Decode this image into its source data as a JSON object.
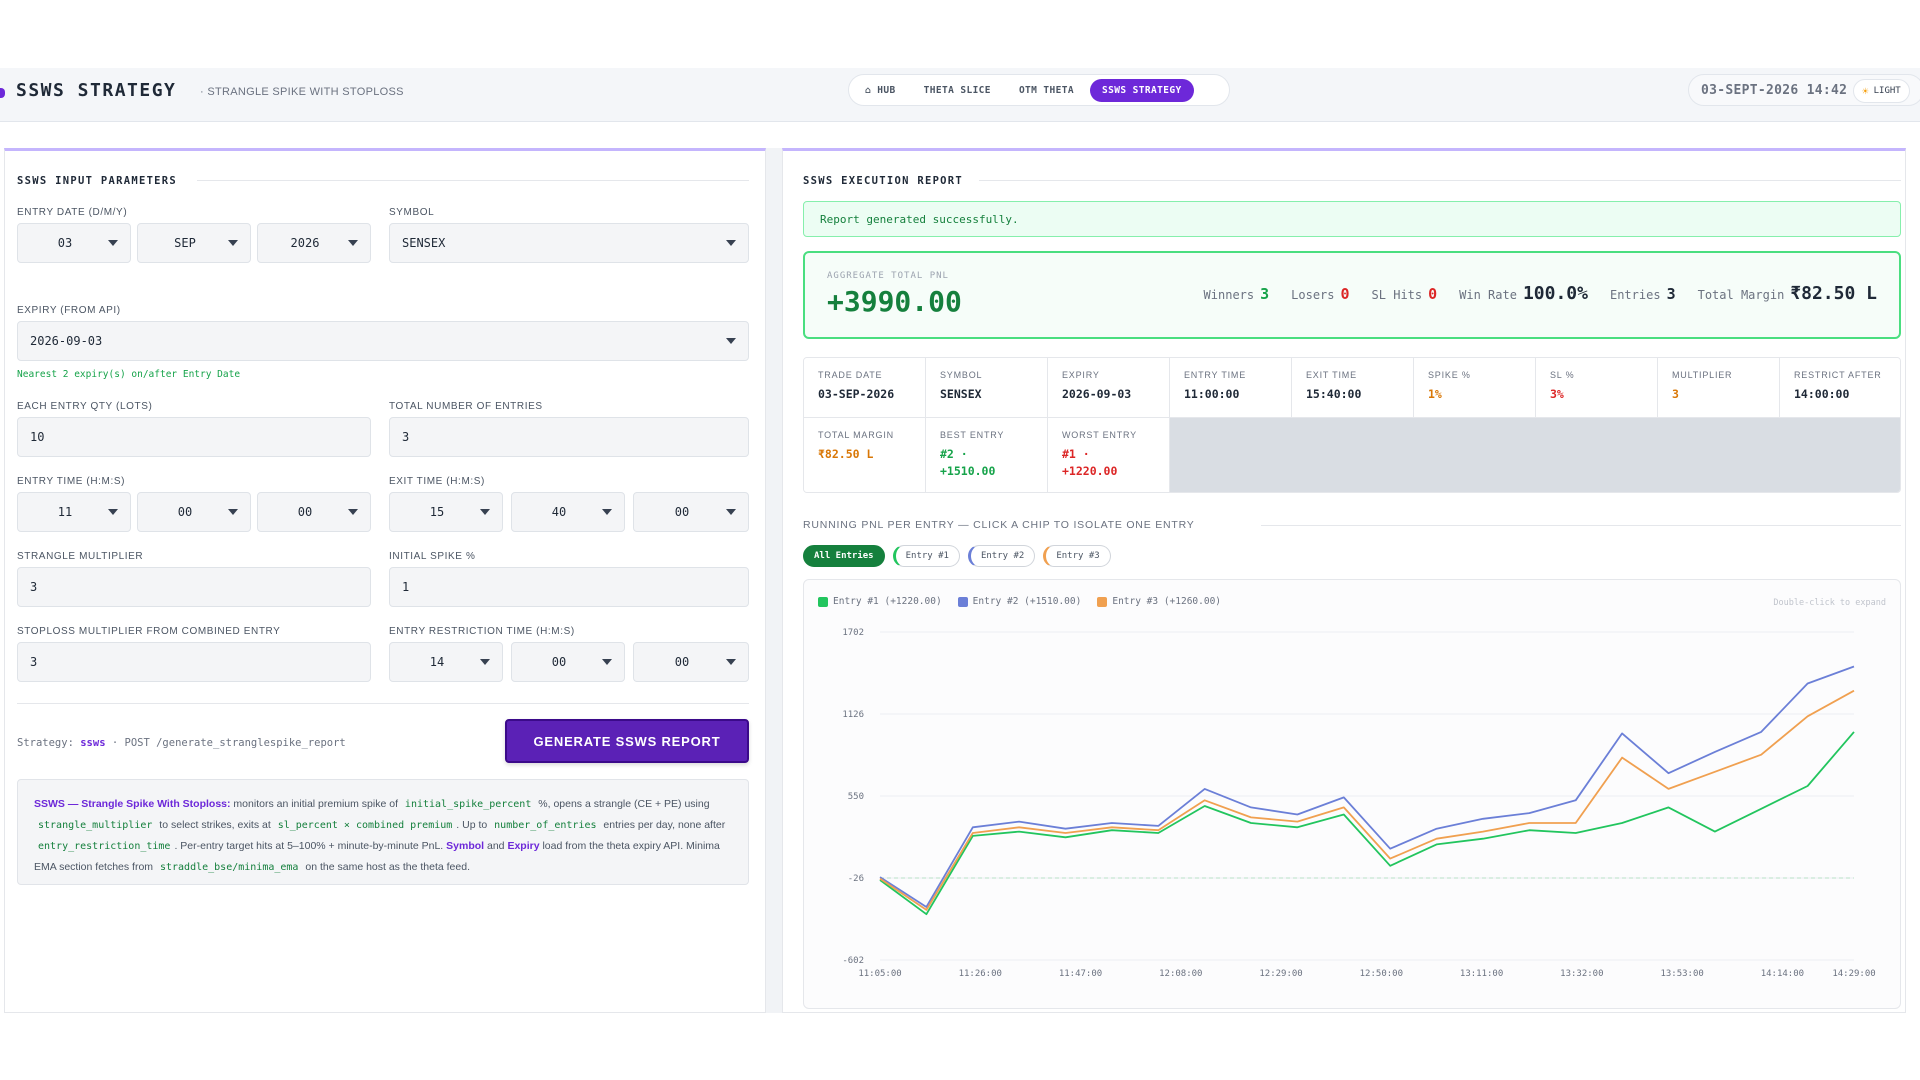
{
  "header": {
    "title": "SSWS STRATEGY",
    "subtitle": "· STRANGLE SPIKE WITH STOPLOSS",
    "nav": [
      {
        "label": "⌂ HUB",
        "active": false
      },
      {
        "label": "THETA SLICE",
        "active": false
      },
      {
        "label": "OTM THETA",
        "active": false
      },
      {
        "label": "SSWS STRATEGY",
        "active": true
      }
    ],
    "clock": "03-SEPT-2026 14:42",
    "theme_label": "LIGHT",
    "theme_icon": "sun-icon"
  },
  "inputs": {
    "section_title": "SSWS INPUT PARAMETERS",
    "entry_date_label": "ENTRY DATE (D/M/Y)",
    "entry_day": "03",
    "entry_month": "SEP",
    "entry_year": "2026",
    "symbol_label": "SYMBOL",
    "symbol": "SENSEX",
    "expiry_label": "EXPIRY (FROM API)",
    "expiry": "2026-09-03",
    "expiry_hint": "Nearest 2 expiry(s) on/after Entry Date",
    "qty_label": "EACH ENTRY QTY (LOTS)",
    "qty": "10",
    "entries_label": "TOTAL NUMBER OF ENTRIES",
    "entries": "3",
    "entry_time_label": "ENTRY TIME (H:M:S)",
    "entry_h": "11",
    "entry_m": "00",
    "entry_s": "00",
    "exit_time_label": "EXIT TIME (H:M:S)",
    "exit_h": "15",
    "exit_m": "40",
    "exit_s": "00",
    "mult_label": "STRANGLE MULTIPLIER",
    "mult": "3",
    "spike_label": "INITIAL SPIKE %",
    "spike": "1",
    "sl_label": "STOPLOSS MULTIPLIER FROM COMBINED ENTRY",
    "sl": "3",
    "restrict_label": "ENTRY RESTRICTION TIME (H:M:S)",
    "restrict_h": "14",
    "restrict_m": "00",
    "restrict_s": "00",
    "strategy_prefix": "Strategy:",
    "strategy_name": "ssws",
    "strategy_endpoint": "· POST /generate_stranglespike_report",
    "generate_label": "GENERATE SSWS REPORT",
    "info": {
      "title": "SSWS — Strangle Spike With Stoploss:",
      "t1": " monitors an initial premium spike of ",
      "c1": "initial_spike_percent",
      "t2": " %, opens a strangle (CE + PE) using ",
      "c2": "strangle_multiplier",
      "t3": " to select strikes, exits at ",
      "c3": "sl_percent × combined premium",
      "t4": ". Up to ",
      "c4": "number_of_entries",
      "t5": " entries per day, none after ",
      "c5": "entry_restriction_time",
      "t6": ". Per-entry target hits at 5–100% + minute-by-minute PnL. ",
      "k1": "Symbol",
      "t7": " and ",
      "k2": "Expiry",
      "t8": " load from the theta expiry API. Minima EMA section fetches from ",
      "c6": "straddle_bse/minima_ema",
      "t9": " on the same host as the theta feed."
    }
  },
  "report": {
    "section_title": "SSWS EXECUTION REPORT",
    "success": "Report generated successfully.",
    "agg_label": "AGGREGATE TOTAL PNL",
    "agg_value": "+3990.00",
    "winners_label": "Winners",
    "winners": "3",
    "losers_label": "Losers",
    "losers": "0",
    "slhits_label": "SL Hits",
    "slhits": "0",
    "winrate_label": "Win Rate",
    "winrate": "100.0%",
    "entries_label": "Entries",
    "entries": "3",
    "margin_label": "Total Margin",
    "margin": "₹82.50 L",
    "cells": [
      {
        "label": "TRADE DATE",
        "value": "03-SEP-2026",
        "color": "#1f2937"
      },
      {
        "label": "SYMBOL",
        "value": "SENSEX",
        "color": "#1f2937"
      },
      {
        "label": "EXPIRY",
        "value": "2026-09-03",
        "color": "#1f2937"
      },
      {
        "label": "ENTRY TIME",
        "value": "11:00:00",
        "color": "#1f2937"
      },
      {
        "label": "EXIT TIME",
        "value": "15:40:00",
        "color": "#1f2937"
      },
      {
        "label": "SPIKE %",
        "value": "1%",
        "color": "#d97706"
      },
      {
        "label": "SL %",
        "value": "3%",
        "color": "#dc2626"
      },
      {
        "label": "MULTIPLIER",
        "value": "3",
        "color": "#d97706"
      },
      {
        "label": "RESTRICT AFTER",
        "value": "14:00:00",
        "color": "#1f2937"
      }
    ],
    "cells2": [
      {
        "label": "TOTAL MARGIN",
        "value": "₹82.50 L",
        "color": "#d97706"
      },
      {
        "label": "BEST ENTRY",
        "value": "#2 ·\n+1510.00",
        "color": "#16a34a"
      },
      {
        "label": "WORST ENTRY",
        "value": "#1 ·\n+1220.00",
        "color": "#dc2626"
      }
    ],
    "chart_title": "RUNNING PNL PER ENTRY — CLICK A CHIP TO ISOLATE ONE ENTRY",
    "chips": [
      {
        "label": "All Entries",
        "active": true,
        "cls": ""
      },
      {
        "label": "Entry #1",
        "active": false,
        "cls": "e1"
      },
      {
        "label": "Entry #2",
        "active": false,
        "cls": "e2"
      },
      {
        "label": "Entry #3",
        "active": false,
        "cls": "e3"
      }
    ],
    "expand_hint": "Double-click to expand"
  },
  "chart_data": {
    "type": "line",
    "title": "",
    "xlabel": "",
    "ylabel": "",
    "x_ticks": [
      "11:05:00",
      "11:26:00",
      "11:47:00",
      "12:08:00",
      "12:29:00",
      "12:50:00",
      "13:11:00",
      "13:32:00",
      "13:53:00",
      "14:14:00",
      "14:29:00"
    ],
    "x_tick_minutes": [
      5,
      26,
      47,
      68,
      89,
      110,
      131,
      152,
      173,
      194,
      209
    ],
    "y_ticks": [
      1702,
      1126,
      550,
      -26,
      -602
    ],
    "ylim": [
      -602,
      1702
    ],
    "x": [
      0,
      10,
      20,
      30,
      40,
      50,
      60,
      70,
      80,
      90,
      100,
      110,
      120,
      130,
      140,
      150,
      160,
      170,
      180,
      190,
      200,
      210
    ],
    "series": [
      {
        "name": "Entry #1 (+1220.00)",
        "color": "#22c55e",
        "values": [
          -40,
          -280,
          270,
          300,
          260,
          310,
          290,
          480,
          360,
          330,
          420,
          60,
          210,
          250,
          310,
          290,
          360,
          470,
          300,
          460,
          620,
          1000
        ]
      },
      {
        "name": "Entry #2 (+1510.00)",
        "color": "#6b7fd7",
        "values": [
          -20,
          -230,
          330,
          370,
          320,
          360,
          340,
          600,
          470,
          420,
          540,
          180,
          320,
          390,
          430,
          520,
          990,
          710,
          860,
          1000,
          1340,
          1460
        ]
      },
      {
        "name": "Entry #3 (+1260.00)",
        "color": "#f0a050",
        "values": [
          -30,
          -250,
          290,
          330,
          290,
          330,
          310,
          520,
          400,
          370,
          470,
          110,
          250,
          300,
          360,
          360,
          820,
          600,
          720,
          840,
          1110,
          1290
        ]
      }
    ],
    "reference_line": -26,
    "legend": "top-left",
    "grid": true
  }
}
